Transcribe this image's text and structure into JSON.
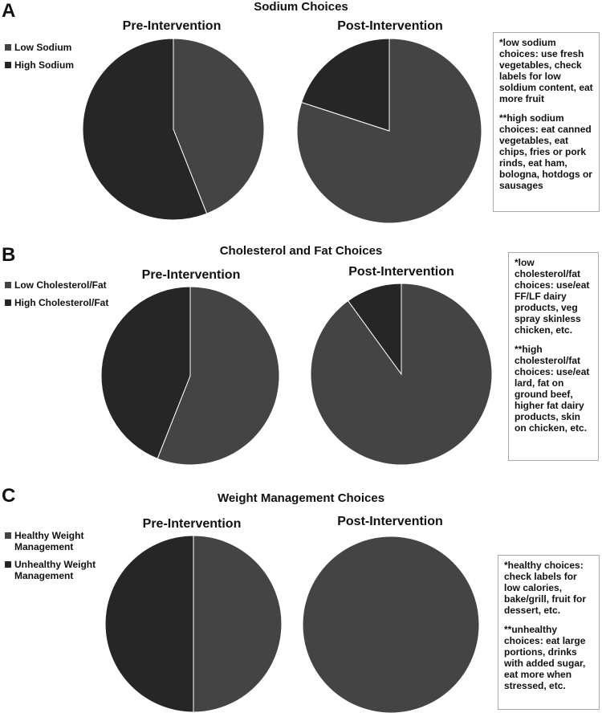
{
  "colors": {
    "low": "#444444",
    "high": "#262626",
    "box_border": "#aaaaaa"
  },
  "panels": [
    {
      "label": "A",
      "title": "Sodium Choices",
      "legend": [
        "Low Sodium",
        "High Sodium"
      ],
      "pre_label": "Pre-Intervention",
      "post_label": "Post-Intervention",
      "notes": [
        "*low sodium choices: use fresh vegetables, check labels for low soldium content, eat more fruit",
        "**high sodium choices: eat canned vegetables, eat chips, fries or pork rinds, eat ham, bologna, hotdogs or sausages"
      ]
    },
    {
      "label": "B",
      "title": "Cholesterol and Fat Choices",
      "legend": [
        "Low Cholesterol/Fat",
        "High Cholesterol/Fat"
      ],
      "pre_label": "Pre-Intervention",
      "post_label": "Post-Intervention",
      "notes": [
        "*low cholesterol/fat choices: use/eat FF/LF dairy products, veg spray skinless chicken, etc.",
        "**high cholesterol/fat choices: use/eat lard, fat on ground beef, higher fat dairy products, skin on chicken, etc."
      ]
    },
    {
      "label": "C",
      "title": "Weight Management Choices",
      "legend": [
        "Healthy Weight Management",
        "Unhealthy Weight Management"
      ],
      "pre_label": "Pre-Intervention",
      "post_label": "Post-Intervention",
      "notes": [
        "*healthy choices: check labels for low calories, bake/grill, fruit for dessert, etc.",
        "**unhealthy choices: eat large portions, drinks with added sugar, eat more when stressed, etc."
      ]
    }
  ],
  "chart_data": [
    {
      "type": "pie",
      "title": "Sodium Choices",
      "subtitle": "Pre-Intervention",
      "categories": [
        "Low Sodium",
        "High Sodium"
      ],
      "values": [
        44,
        56
      ]
    },
    {
      "type": "pie",
      "title": "Sodium Choices",
      "subtitle": "Post-Intervention",
      "categories": [
        "Low Sodium",
        "High Sodium"
      ],
      "values": [
        80,
        20
      ]
    },
    {
      "type": "pie",
      "title": "Cholesterol and Fat Choices",
      "subtitle": "Pre-Intervention",
      "categories": [
        "Low Cholesterol/Fat",
        "High Cholesterol/Fat"
      ],
      "values": [
        56,
        44
      ]
    },
    {
      "type": "pie",
      "title": "Cholesterol and Fat Choices",
      "subtitle": "Post-Intervention",
      "categories": [
        "Low Cholesterol/Fat",
        "High Cholesterol/Fat"
      ],
      "values": [
        90,
        10
      ]
    },
    {
      "type": "pie",
      "title": "Weight Management Choices",
      "subtitle": "Pre-Intervention",
      "categories": [
        "Healthy Weight Management",
        "Unhealthy Weight Management"
      ],
      "values": [
        50,
        50
      ]
    },
    {
      "type": "pie",
      "title": "Weight Management Choices",
      "subtitle": "Post-Intervention",
      "categories": [
        "Healthy Weight Management",
        "Unhealthy Weight Management"
      ],
      "values": [
        100,
        0
      ]
    }
  ]
}
